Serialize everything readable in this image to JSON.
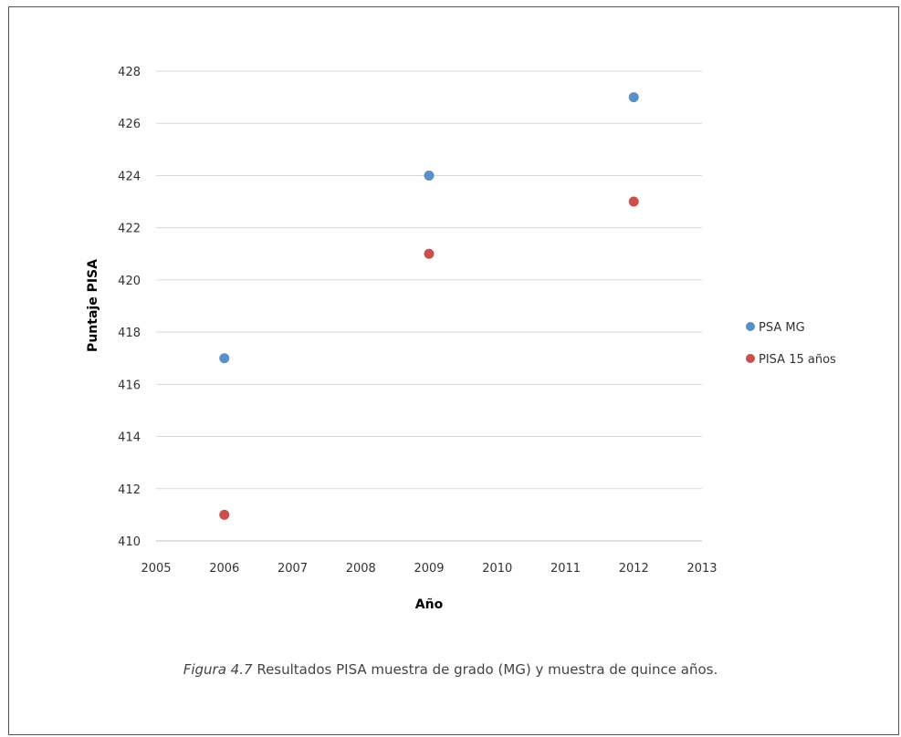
{
  "chart_data": {
    "type": "scatter",
    "xlabel": "Año",
    "ylabel": "Puntaje PISA",
    "xlim": [
      2005,
      2013
    ],
    "ylim": [
      410,
      428
    ],
    "xticks": [
      2005,
      2006,
      2007,
      2008,
      2009,
      2010,
      2011,
      2012,
      2013
    ],
    "yticks": [
      410,
      412,
      414,
      416,
      418,
      420,
      422,
      424,
      426,
      428
    ],
    "grid": "horizontal",
    "legend": "right",
    "series": [
      {
        "name": "PSA MG",
        "color": "#5b8fc7",
        "points": [
          [
            2006,
            417
          ],
          [
            2009,
            424
          ],
          [
            2012,
            427
          ]
        ]
      },
      {
        "name": "PISA 15 años",
        "color": "#c9504d",
        "points": [
          [
            2006,
            411
          ],
          [
            2009,
            421
          ],
          [
            2012,
            423
          ]
        ]
      }
    ]
  },
  "caption": {
    "label": "Figura 4.7",
    "text": " Resultados PISA muestra de grado (MG) y muestra de quince años."
  }
}
